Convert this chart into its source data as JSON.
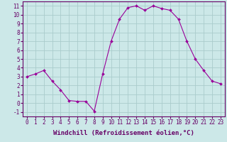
{
  "x": [
    0,
    1,
    2,
    3,
    4,
    5,
    6,
    7,
    8,
    9,
    10,
    11,
    12,
    13,
    14,
    15,
    16,
    17,
    18,
    19,
    20,
    21,
    22,
    23
  ],
  "y": [
    3.0,
    3.3,
    3.7,
    2.5,
    1.5,
    0.3,
    0.2,
    0.2,
    -0.9,
    3.3,
    7.0,
    9.5,
    10.8,
    11.0,
    10.5,
    11.0,
    10.7,
    10.5,
    9.5,
    7.0,
    5.0,
    3.7,
    2.5,
    2.2
  ],
  "line_color": "#990099",
  "marker": "D",
  "marker_size": 2,
  "bg_color": "#cce8e8",
  "grid_color": "#aacccc",
  "xlabel": "Windchill (Refroidissement éolien,°C)",
  "ylabel": "",
  "xlim": [
    -0.5,
    23.5
  ],
  "ylim": [
    -1.5,
    11.5
  ],
  "xticks": [
    0,
    1,
    2,
    3,
    4,
    5,
    6,
    7,
    8,
    9,
    10,
    11,
    12,
    13,
    14,
    15,
    16,
    17,
    18,
    19,
    20,
    21,
    22,
    23
  ],
  "yticks": [
    -1,
    0,
    1,
    2,
    3,
    4,
    5,
    6,
    7,
    8,
    9,
    10,
    11
  ],
  "tick_fontsize": 5.5,
  "xlabel_fontsize": 6.5,
  "axis_color": "#660066",
  "spine_color": "#660066"
}
